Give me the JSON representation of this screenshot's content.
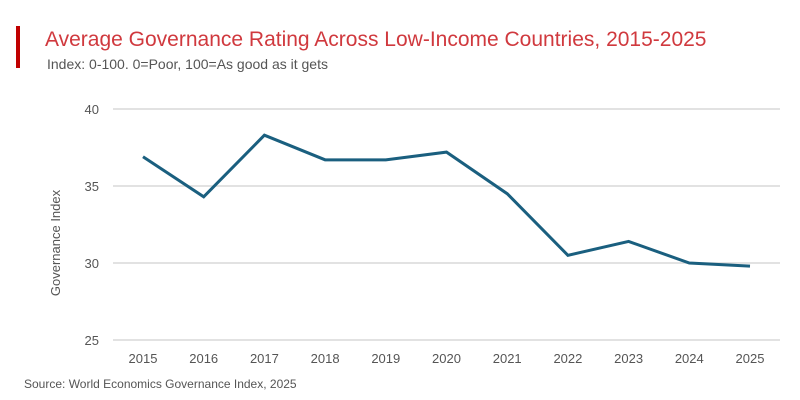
{
  "chart_data": {
    "type": "line",
    "title": "Average Governance Rating Across Low-Income Countries, 2015-2025",
    "subtitle": "Index: 0-100. 0=Poor, 100=As good as it gets",
    "xlabel": "",
    "ylabel": "Governance Index",
    "source": "Source: World Economics Governance Index, 2025",
    "x": [
      "2015",
      "2016",
      "2017",
      "2018",
      "2019",
      "2020",
      "2021",
      "2022",
      "2023",
      "2024",
      "2025"
    ],
    "series": [
      {
        "values": [
          36.9,
          34.3,
          38.3,
          36.7,
          36.7,
          37.2,
          34.5,
          30.5,
          31.4,
          30.0,
          29.8
        ],
        "color": "#1a5f7f"
      }
    ],
    "ylim": [
      25,
      40
    ],
    "yticks": [
      25,
      30,
      35,
      40
    ],
    "grid": true,
    "accent_color": "#c00000",
    "title_color": "#d0393e"
  }
}
